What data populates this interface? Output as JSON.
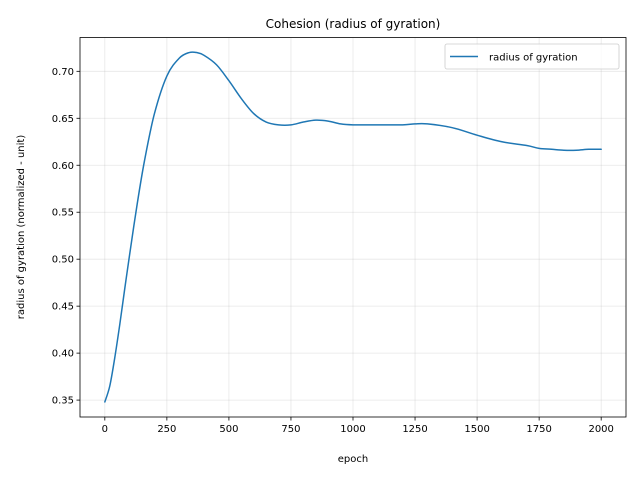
{
  "chart_data": {
    "type": "line",
    "title": "Cohesion (radius of gyration)",
    "xlabel": "epoch",
    "ylabel": "radius of gyration (normalized - unit)",
    "xlim": [
      -100,
      2100
    ],
    "ylim": [
      0.332,
      0.736
    ],
    "xticks": [
      0,
      250,
      500,
      750,
      1000,
      1250,
      1500,
      1750,
      2000
    ],
    "yticks": [
      0.35,
      0.4,
      0.45,
      0.5,
      0.55,
      0.6,
      0.65,
      0.7
    ],
    "grid": true,
    "legend_position": "top-right",
    "color": "#1f77b4",
    "series": [
      {
        "name": "radius of gyration",
        "x": [
          0,
          20,
          40,
          60,
          80,
          100,
          130,
          160,
          200,
          250,
          300,
          340,
          370,
          400,
          450,
          500,
          550,
          600,
          650,
          700,
          750,
          800,
          850,
          900,
          950,
          1000,
          1100,
          1200,
          1250,
          1300,
          1400,
          1500,
          1600,
          1700,
          1750,
          1800,
          1850,
          1900,
          1950,
          2000
        ],
        "y": [
          0.348,
          0.365,
          0.395,
          0.43,
          0.468,
          0.505,
          0.558,
          0.605,
          0.655,
          0.695,
          0.714,
          0.72,
          0.72,
          0.717,
          0.707,
          0.69,
          0.671,
          0.655,
          0.646,
          0.643,
          0.643,
          0.646,
          0.648,
          0.647,
          0.644,
          0.643,
          0.643,
          0.643,
          0.644,
          0.644,
          0.64,
          0.632,
          0.625,
          0.621,
          0.618,
          0.617,
          0.616,
          0.616,
          0.617,
          0.617
        ]
      }
    ]
  }
}
